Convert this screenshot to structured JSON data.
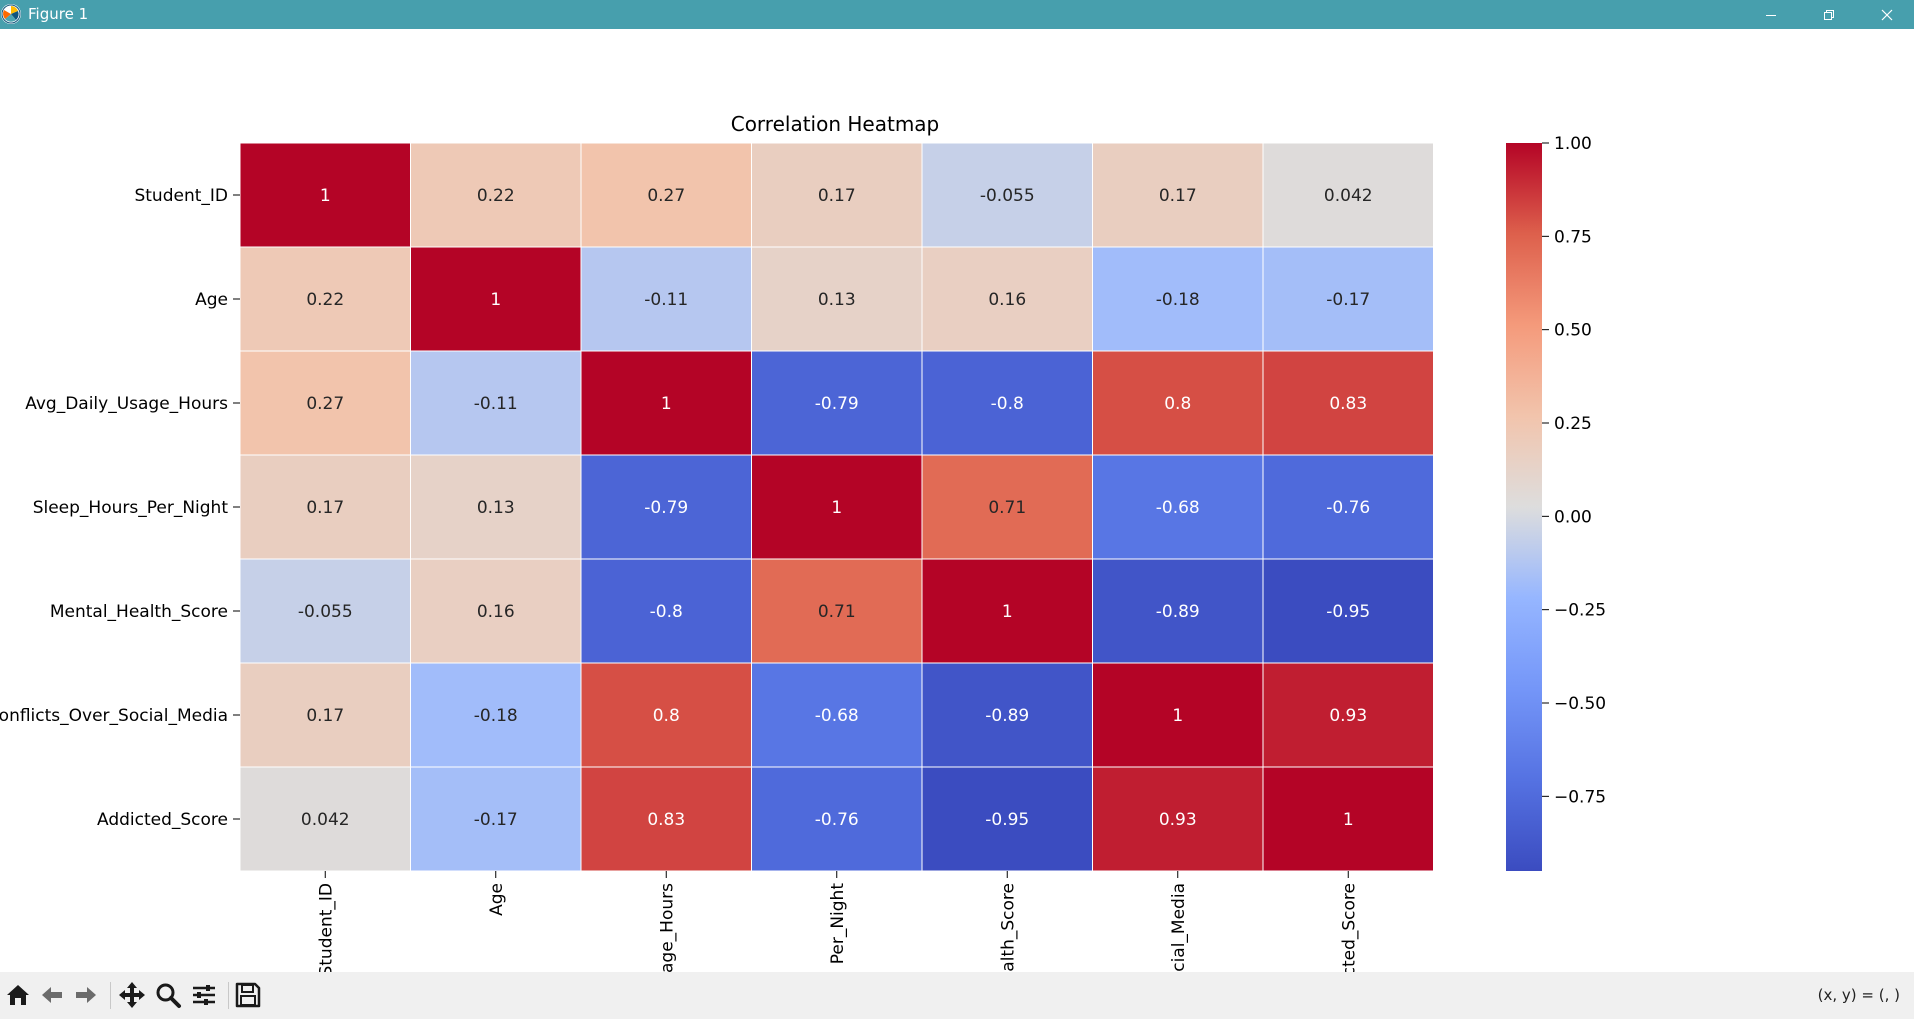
{
  "window": {
    "title": "Figure 1",
    "app_icon": "matplotlib-icon",
    "controls": [
      "minimize-icon",
      "maximize-icon",
      "close-icon"
    ]
  },
  "toolbar": {
    "buttons": [
      "home-icon",
      "back-arrow-icon",
      "forward-arrow-icon",
      "pan-icon",
      "zoom-icon",
      "configure-subplots-icon",
      "save-icon"
    ],
    "coords_text": "(x, y) = (, )"
  },
  "chart_data": {
    "type": "heatmap",
    "title": "Correlation Heatmap",
    "row_labels": [
      "Student_ID",
      "Age",
      "Avg_Daily_Usage_Hours",
      "Sleep_Hours_Per_Night",
      "Mental_Health_Score",
      "onflicts_Over_Social_Media",
      "Addicted_Score"
    ],
    "col_labels": [
      "Student_ID",
      "Age",
      "age_Hours",
      "Per_Night",
      "alth_Score",
      "cial_Media",
      "cted_Score"
    ],
    "values": [
      [
        1,
        0.22,
        0.27,
        0.17,
        -0.055,
        0.17,
        0.042
      ],
      [
        0.22,
        1,
        -0.11,
        0.13,
        0.16,
        -0.18,
        -0.17
      ],
      [
        0.27,
        -0.11,
        1,
        -0.79,
        -0.8,
        0.8,
        0.83
      ],
      [
        0.17,
        0.13,
        -0.79,
        1,
        0.71,
        -0.68,
        -0.76
      ],
      [
        -0.055,
        0.16,
        -0.8,
        0.71,
        1,
        -0.89,
        -0.95
      ],
      [
        0.17,
        -0.18,
        0.8,
        -0.68,
        -0.89,
        1,
        0.93
      ],
      [
        0.042,
        -0.17,
        0.83,
        -0.76,
        -0.95,
        0.93,
        1
      ]
    ],
    "colormap": "coolwarm",
    "vmin": -0.95,
    "vmax": 1.0,
    "colorbar_ticks": [
      "1.00",
      "0.75",
      "0.50",
      "0.25",
      "0.00",
      "−0.25",
      "−0.50",
      "−0.75"
    ],
    "colorbar_tick_values": [
      1.0,
      0.75,
      0.5,
      0.25,
      0.0,
      -0.25,
      -0.5,
      -0.75
    ],
    "annotations": true,
    "grid": false
  }
}
